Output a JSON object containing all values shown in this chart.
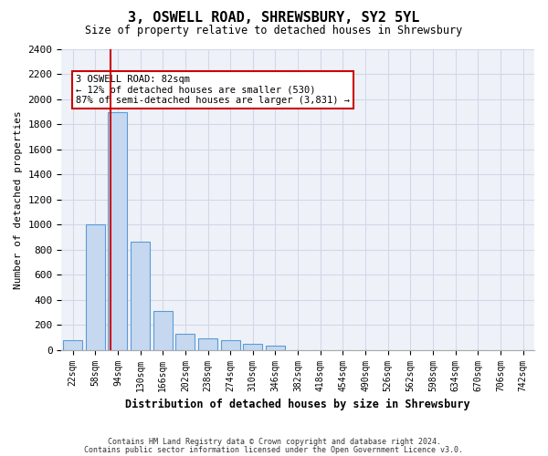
{
  "title": "3, OSWELL ROAD, SHREWSBURY, SY2 5YL",
  "subtitle": "Size of property relative to detached houses in Shrewsbury",
  "xlabel": "Distribution of detached houses by size in Shrewsbury",
  "ylabel": "Number of detached properties",
  "bin_labels": [
    "22sqm",
    "58sqm",
    "94sqm",
    "130sqm",
    "166sqm",
    "202sqm",
    "238sqm",
    "274sqm",
    "310sqm",
    "346sqm",
    "382sqm",
    "418sqm",
    "454sqm",
    "490sqm",
    "526sqm",
    "562sqm",
    "598sqm",
    "634sqm",
    "670sqm",
    "706sqm",
    "742sqm"
  ],
  "bar_values": [
    80,
    1000,
    1900,
    860,
    310,
    130,
    90,
    75,
    50,
    30,
    0,
    0,
    0,
    0,
    0,
    0,
    0,
    0,
    0,
    0,
    0
  ],
  "bar_color": "#c5d8f0",
  "bar_edge_color": "#5b9bd5",
  "grid_color": "#d0d8e8",
  "background_color": "#eef2f8",
  "annotation_text": "3 OSWELL ROAD: 82sqm\n← 12% of detached houses are smaller (530)\n87% of semi-detached houses are larger (3,831) →",
  "annotation_box_color": "#ffffff",
  "annotation_box_edge": "#cc0000",
  "ylim": [
    0,
    2400
  ],
  "yticks": [
    0,
    200,
    400,
    600,
    800,
    1000,
    1200,
    1400,
    1600,
    1800,
    2000,
    2200,
    2400
  ],
  "footer_line1": "Contains HM Land Registry data © Crown copyright and database right 2024.",
  "footer_line2": "Contains public sector information licensed under the Open Government Licence v3.0."
}
